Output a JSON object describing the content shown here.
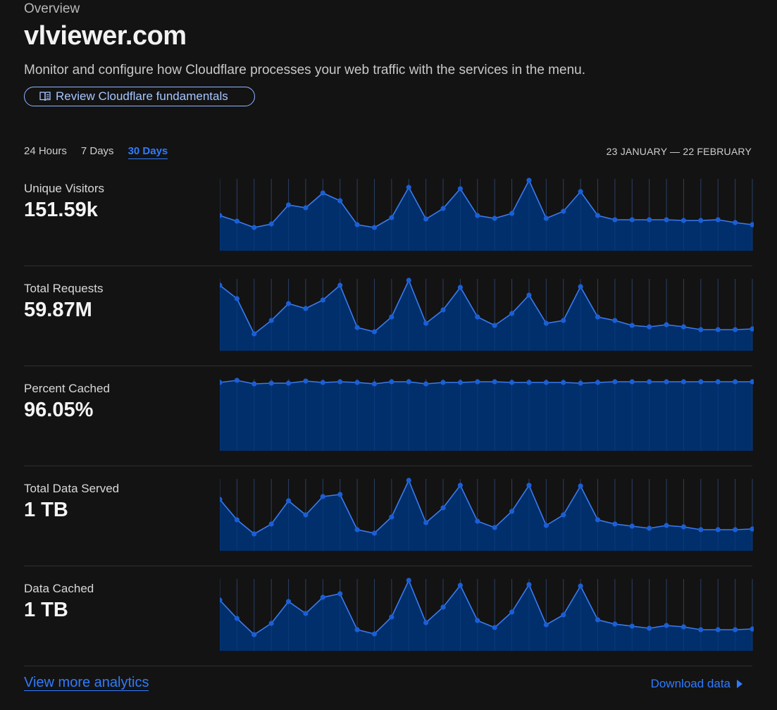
{
  "header": {
    "overview_label": "Overview",
    "zone_name": "vlviewer.com",
    "subtitle": "Monitor and configure how Cloudflare processes your web traffic with the services in the menu.",
    "fundamentals_button": "Review Cloudflare fundamentals"
  },
  "range": {
    "tabs": [
      "24 Hours",
      "7 Days",
      "30 Days"
    ],
    "active_tab": "30 Days",
    "date_range": "23 JANUARY — 22 FEBRUARY"
  },
  "metrics": [
    {
      "label": "Unique Visitors",
      "value": "151.59k",
      "series": [
        0.5,
        0.42,
        0.33,
        0.38,
        0.65,
        0.61,
        0.82,
        0.71,
        0.37,
        0.33,
        0.47,
        0.9,
        0.45,
        0.6,
        0.88,
        0.5,
        0.46,
        0.53,
        1.0,
        0.46,
        0.56,
        0.84,
        0.5,
        0.44,
        0.44,
        0.44,
        0.44,
        0.43,
        0.43,
        0.44,
        0.4,
        0.37
      ]
    },
    {
      "label": "Total Requests",
      "value": "59.87M",
      "series": [
        0.93,
        0.74,
        0.24,
        0.43,
        0.67,
        0.6,
        0.72,
        0.93,
        0.33,
        0.27,
        0.48,
        1.0,
        0.39,
        0.58,
        0.9,
        0.48,
        0.36,
        0.53,
        0.79,
        0.39,
        0.43,
        0.91,
        0.48,
        0.43,
        0.36,
        0.34,
        0.37,
        0.34,
        0.3,
        0.3,
        0.3,
        0.31
      ]
    },
    {
      "label": "Percent Cached",
      "value": "96.05%",
      "series": [
        0.97,
        1.0,
        0.95,
        0.96,
        0.96,
        0.99,
        0.97,
        0.98,
        0.97,
        0.95,
        0.98,
        0.98,
        0.95,
        0.97,
        0.97,
        0.98,
        0.98,
        0.97,
        0.97,
        0.97,
        0.97,
        0.96,
        0.97,
        0.98,
        0.98,
        0.98,
        0.98,
        0.98,
        0.98,
        0.98,
        0.98,
        0.98
      ]
    },
    {
      "label": "Total Data Served",
      "value": "1 TB",
      "series": [
        0.73,
        0.44,
        0.24,
        0.38,
        0.71,
        0.51,
        0.77,
        0.8,
        0.3,
        0.25,
        0.48,
        1.0,
        0.4,
        0.61,
        0.93,
        0.42,
        0.33,
        0.56,
        0.93,
        0.36,
        0.51,
        0.92,
        0.44,
        0.38,
        0.35,
        0.32,
        0.36,
        0.34,
        0.3,
        0.3,
        0.3,
        0.31
      ]
    },
    {
      "label": "Data Cached",
      "value": "1 TB",
      "series": [
        0.72,
        0.46,
        0.23,
        0.39,
        0.7,
        0.53,
        0.76,
        0.81,
        0.3,
        0.24,
        0.48,
        1.0,
        0.4,
        0.62,
        0.93,
        0.43,
        0.33,
        0.55,
        0.94,
        0.37,
        0.51,
        0.92,
        0.44,
        0.38,
        0.35,
        0.32,
        0.36,
        0.34,
        0.3,
        0.3,
        0.3,
        0.31
      ]
    }
  ],
  "footer": {
    "view_more": "View more analytics",
    "download": "Download data"
  },
  "colors": {
    "accent": "#2f7bff",
    "area_fill": "#002f6c",
    "line": "#3a7bef",
    "marker": "#1a5fd6",
    "grid": "#2a3f66"
  },
  "icons": {
    "fundamentals": "book-open-icon",
    "download": "triangle-right-icon"
  }
}
